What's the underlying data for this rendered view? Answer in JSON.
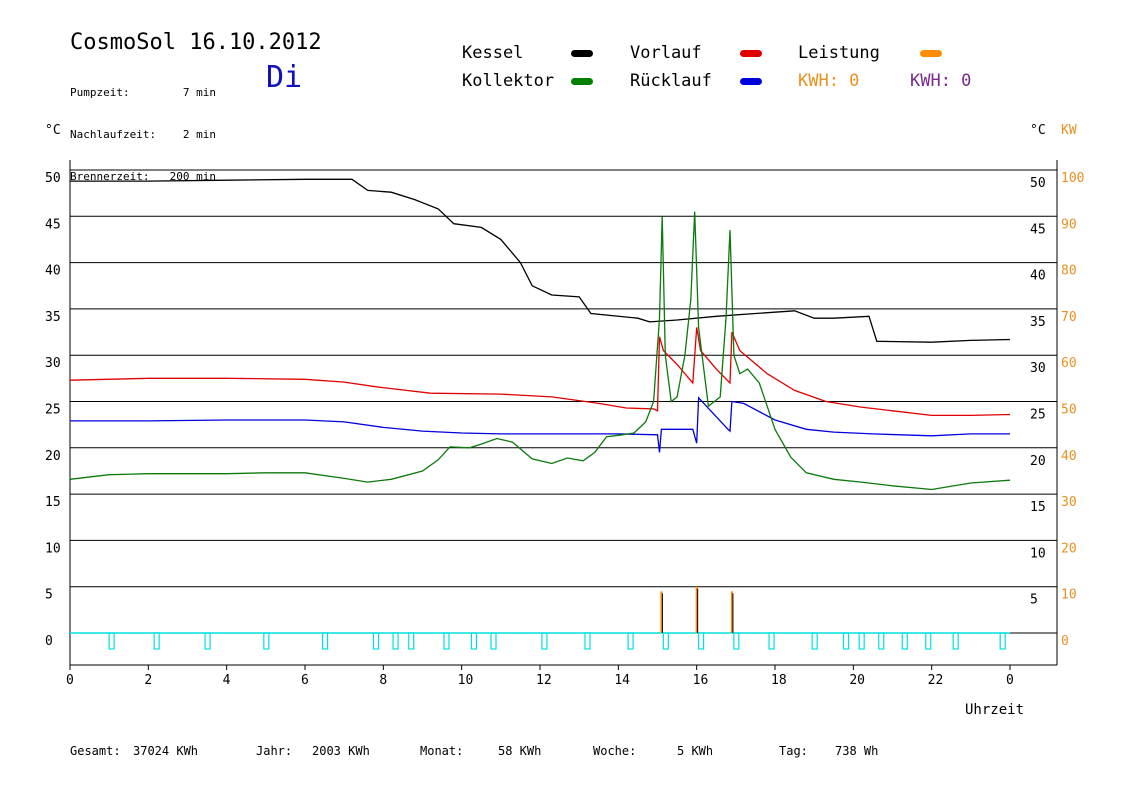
{
  "header": {
    "title": "CosmoSol 16.10.2012",
    "info_labels": [
      "Pumpzeit:",
      "Nachlaufzeit:",
      "Brennerzeit:"
    ],
    "info_values": [
      "7 min",
      "2 min",
      "200 min"
    ],
    "day": "Di"
  },
  "legend": {
    "items": [
      {
        "label": "Kessel",
        "color": "#000000"
      },
      {
        "label": "Vorlauf",
        "color": "#e00000"
      },
      {
        "label": "Leistung",
        "color": "#ff8c00"
      },
      {
        "label": "Kollektor",
        "color": "#008000"
      },
      {
        "label": "Rücklauf",
        "color": "#0000dd"
      }
    ],
    "kwh_orange": "KWH: 0",
    "kwh_purple": "KWH: 0",
    "kwh_orange_color": "#e89020",
    "kwh_purple_color": "#7a2a8a"
  },
  "footer": {
    "items": [
      {
        "label": "Gesamt:",
        "value": "37024 KWh"
      },
      {
        "label": "Jahr:",
        "value": "2003 KWh"
      },
      {
        "label": "Monat:",
        "value": "58 KWh"
      },
      {
        "label": "Woche:",
        "value": "5 KWh"
      },
      {
        "label": "Tag:",
        "value": "738 Wh"
      }
    ]
  },
  "chart_data": {
    "type": "line",
    "xlabel": "Uhrzeit",
    "x_ticks": [
      "0",
      "2",
      "4",
      "6",
      "8",
      "10",
      "12",
      "14",
      "16",
      "18",
      "20",
      "22",
      "0"
    ],
    "xlim": [
      0,
      24
    ],
    "y_left_label": "°C",
    "y_right_label": "°C",
    "y_right2_label": "KW",
    "ylim": [
      0,
      50
    ],
    "y_ticks_left": [
      "0",
      "5",
      "10",
      "15",
      "20",
      "25",
      "30",
      "35",
      "40",
      "45",
      "50"
    ],
    "y_ticks_right": [
      "5",
      "10",
      "15",
      "20",
      "25",
      "30",
      "35",
      "40",
      "45",
      "50"
    ],
    "y_ticks_kw": [
      "0",
      "10",
      "20",
      "30",
      "40",
      "50",
      "60",
      "70",
      "80",
      "90",
      "100"
    ],
    "grid": true,
    "series": [
      {
        "name": "Kessel",
        "color": "#000000",
        "points": [
          [
            0,
            48.8
          ],
          [
            2,
            48.8
          ],
          [
            4,
            48.9
          ],
          [
            6,
            49.0
          ],
          [
            7.2,
            49.0
          ],
          [
            7.6,
            47.8
          ],
          [
            8.2,
            47.6
          ],
          [
            8.8,
            46.8
          ],
          [
            9.4,
            45.8
          ],
          [
            9.8,
            44.2
          ],
          [
            10.5,
            43.8
          ],
          [
            11,
            42.5
          ],
          [
            11.5,
            40.0
          ],
          [
            11.8,
            37.5
          ],
          [
            12.3,
            36.5
          ],
          [
            13,
            36.3
          ],
          [
            13.3,
            34.5
          ],
          [
            14.5,
            34.0
          ],
          [
            14.8,
            33.6
          ],
          [
            15.5,
            33.8
          ],
          [
            16.5,
            34.2
          ],
          [
            17.5,
            34.5
          ],
          [
            18.5,
            34.8
          ],
          [
            19,
            34.0
          ],
          [
            19.5,
            34.0
          ],
          [
            20.4,
            34.2
          ],
          [
            20.6,
            31.5
          ],
          [
            22,
            31.4
          ],
          [
            23,
            31.6
          ],
          [
            24,
            31.7
          ]
        ]
      },
      {
        "name": "Vorlauf",
        "color": "#e00000",
        "points": [
          [
            0,
            27.3
          ],
          [
            2,
            27.5
          ],
          [
            4,
            27.5
          ],
          [
            6,
            27.4
          ],
          [
            7,
            27.1
          ],
          [
            7.8,
            26.6
          ],
          [
            9.2,
            25.9
          ],
          [
            11,
            25.8
          ],
          [
            12.3,
            25.5
          ],
          [
            13.5,
            24.8
          ],
          [
            14.2,
            24.3
          ],
          [
            14.9,
            24.2
          ],
          [
            15.0,
            24.0
          ],
          [
            15.05,
            32.0
          ],
          [
            15.15,
            30.5
          ],
          [
            15.5,
            29.0
          ],
          [
            15.9,
            27.0
          ],
          [
            16.0,
            33.0
          ],
          [
            16.1,
            30.5
          ],
          [
            16.5,
            28.5
          ],
          [
            16.85,
            27.0
          ],
          [
            16.9,
            32.5
          ],
          [
            17.1,
            30.5
          ],
          [
            17.8,
            28.0
          ],
          [
            18.5,
            26.2
          ],
          [
            19.3,
            25.0
          ],
          [
            20.2,
            24.4
          ],
          [
            21,
            24.0
          ],
          [
            22,
            23.5
          ],
          [
            23,
            23.5
          ],
          [
            24,
            23.6
          ]
        ]
      },
      {
        "name": "Rücklauf",
        "color": "#0000dd",
        "points": [
          [
            0,
            22.9
          ],
          [
            2,
            22.9
          ],
          [
            4,
            23.0
          ],
          [
            6,
            23.0
          ],
          [
            7,
            22.8
          ],
          [
            8,
            22.2
          ],
          [
            9,
            21.8
          ],
          [
            10,
            21.6
          ],
          [
            11,
            21.5
          ],
          [
            12,
            21.5
          ],
          [
            13,
            21.5
          ],
          [
            14,
            21.5
          ],
          [
            15.0,
            21.4
          ],
          [
            15.05,
            19.5
          ],
          [
            15.1,
            22.0
          ],
          [
            15.9,
            22.0
          ],
          [
            16.0,
            20.5
          ],
          [
            16.05,
            25.4
          ],
          [
            16.8,
            22.0
          ],
          [
            16.85,
            21.8
          ],
          [
            16.9,
            25.0
          ],
          [
            17.2,
            24.8
          ],
          [
            18,
            23.0
          ],
          [
            18.8,
            22.0
          ],
          [
            19.5,
            21.7
          ],
          [
            20.5,
            21.5
          ],
          [
            22,
            21.3
          ],
          [
            23,
            21.5
          ],
          [
            24,
            21.5
          ]
        ]
      },
      {
        "name": "Kollektor",
        "color": "#0b7a0b",
        "points": [
          [
            0,
            16.6
          ],
          [
            1,
            17.1
          ],
          [
            2,
            17.2
          ],
          [
            3,
            17.2
          ],
          [
            4,
            17.2
          ],
          [
            5,
            17.3
          ],
          [
            6,
            17.3
          ],
          [
            7,
            16.7
          ],
          [
            7.6,
            16.3
          ],
          [
            8.2,
            16.6
          ],
          [
            9.0,
            17.5
          ],
          [
            9.4,
            18.7
          ],
          [
            9.7,
            20.1
          ],
          [
            10.2,
            20.0
          ],
          [
            10.5,
            20.4
          ],
          [
            10.9,
            21.0
          ],
          [
            11.3,
            20.6
          ],
          [
            11.8,
            18.8
          ],
          [
            12.3,
            18.3
          ],
          [
            12.7,
            18.9
          ],
          [
            13.1,
            18.6
          ],
          [
            13.4,
            19.5
          ],
          [
            13.7,
            21.2
          ],
          [
            14.1,
            21.4
          ],
          [
            14.4,
            21.6
          ],
          [
            14.7,
            22.8
          ],
          [
            14.9,
            25.0
          ],
          [
            15.05,
            34.0
          ],
          [
            15.12,
            45.0
          ],
          [
            15.2,
            30.0
          ],
          [
            15.35,
            25.0
          ],
          [
            15.5,
            25.5
          ],
          [
            15.7,
            30.0
          ],
          [
            15.85,
            36.0
          ],
          [
            15.95,
            45.5
          ],
          [
            16.05,
            33.0
          ],
          [
            16.3,
            24.5
          ],
          [
            16.6,
            25.5
          ],
          [
            16.75,
            34.0
          ],
          [
            16.85,
            43.5
          ],
          [
            16.95,
            30.0
          ],
          [
            17.1,
            28.0
          ],
          [
            17.3,
            28.5
          ],
          [
            17.6,
            27.0
          ],
          [
            18.0,
            22.0
          ],
          [
            18.4,
            19.0
          ],
          [
            18.8,
            17.3
          ],
          [
            19.5,
            16.6
          ],
          [
            20.2,
            16.3
          ],
          [
            21,
            15.9
          ],
          [
            22,
            15.5
          ],
          [
            23,
            16.2
          ],
          [
            24,
            16.5
          ]
        ]
      }
    ],
    "leistung_kw": [
      [
        15.1,
        9.0
      ],
      [
        16.0,
        10.0
      ],
      [
        16.9,
        9.0
      ]
    ],
    "pump_markers_h": [
      1.05,
      2.2,
      3.5,
      5.0,
      6.5,
      7.8,
      8.3,
      8.7,
      9.6,
      10.3,
      10.8,
      12.1,
      13.2,
      14.3,
      15.2,
      16.1,
      17.0,
      17.9,
      19.0,
      19.8,
      20.2,
      20.7,
      21.3,
      21.9,
      22.6,
      23.8
    ]
  }
}
